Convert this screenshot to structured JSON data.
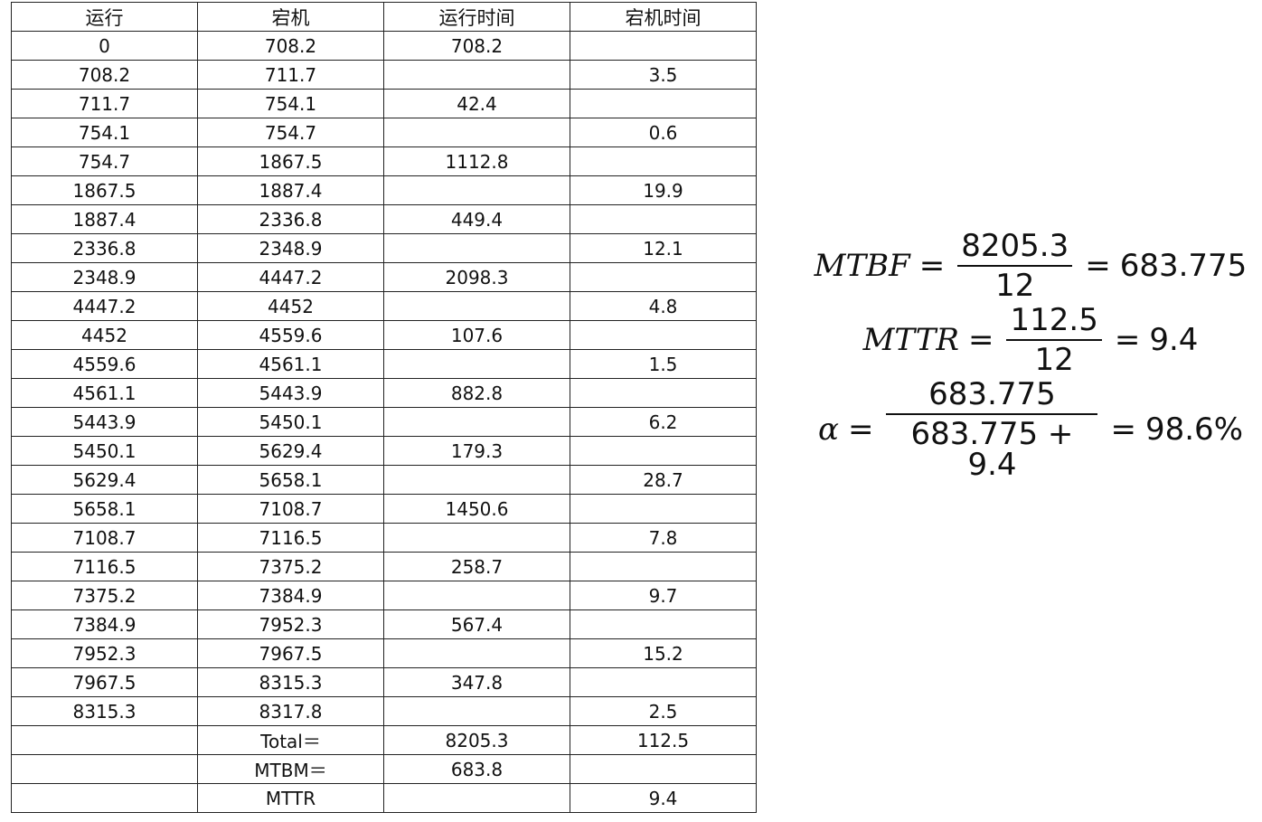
{
  "table": {
    "headers": [
      "运行",
      "宕机",
      "运行时间",
      "宕机时间"
    ],
    "rows": [
      [
        "0",
        "708.2",
        "708.2",
        ""
      ],
      [
        "708.2",
        "711.7",
        "",
        "3.5"
      ],
      [
        "711.7",
        "754.1",
        "42.4",
        ""
      ],
      [
        "754.1",
        "754.7",
        "",
        "0.6"
      ],
      [
        "754.7",
        "1867.5",
        "1112.8",
        ""
      ],
      [
        "1867.5",
        "1887.4",
        "",
        "19.9"
      ],
      [
        "1887.4",
        "2336.8",
        "449.4",
        ""
      ],
      [
        "2336.8",
        "2348.9",
        "",
        "12.1"
      ],
      [
        "2348.9",
        "4447.2",
        "2098.3",
        ""
      ],
      [
        "4447.2",
        "4452",
        "",
        "4.8"
      ],
      [
        "4452",
        "4559.6",
        "107.6",
        ""
      ],
      [
        "4559.6",
        "4561.1",
        "",
        "1.5"
      ],
      [
        "4561.1",
        "5443.9",
        "882.8",
        ""
      ],
      [
        "5443.9",
        "5450.1",
        "",
        "6.2"
      ],
      [
        "5450.1",
        "5629.4",
        "179.3",
        ""
      ],
      [
        "5629.4",
        "5658.1",
        "",
        "28.7"
      ],
      [
        "5658.1",
        "7108.7",
        "1450.6",
        ""
      ],
      [
        "7108.7",
        "7116.5",
        "",
        "7.8"
      ],
      [
        "7116.5",
        "7375.2",
        "258.7",
        ""
      ],
      [
        "7375.2",
        "7384.9",
        "",
        "9.7"
      ],
      [
        "7384.9",
        "7952.3",
        "567.4",
        ""
      ],
      [
        "7952.3",
        "7967.5",
        "",
        "15.2"
      ],
      [
        "7967.5",
        "8315.3",
        "347.8",
        ""
      ],
      [
        "8315.3",
        "8317.8",
        "",
        "2.5"
      ],
      [
        "",
        "Total＝",
        "8205.3",
        "112.5"
      ],
      [
        "",
        "MTBM＝",
        "683.8",
        ""
      ],
      [
        "",
        "MTTR",
        "",
        "9.4"
      ]
    ]
  },
  "formulas": {
    "mtbf": {
      "lhs": "MTBF",
      "num": "8205.3",
      "den": "12",
      "result": "683.775"
    },
    "mttr": {
      "lhs": "MTTR",
      "num": "112.5",
      "den": "12",
      "result": "9.4"
    },
    "alpha": {
      "lhs": "α",
      "num": "683.775",
      "den": "683.775 + 9.4",
      "result": "98.6%"
    },
    "equals": "="
  }
}
